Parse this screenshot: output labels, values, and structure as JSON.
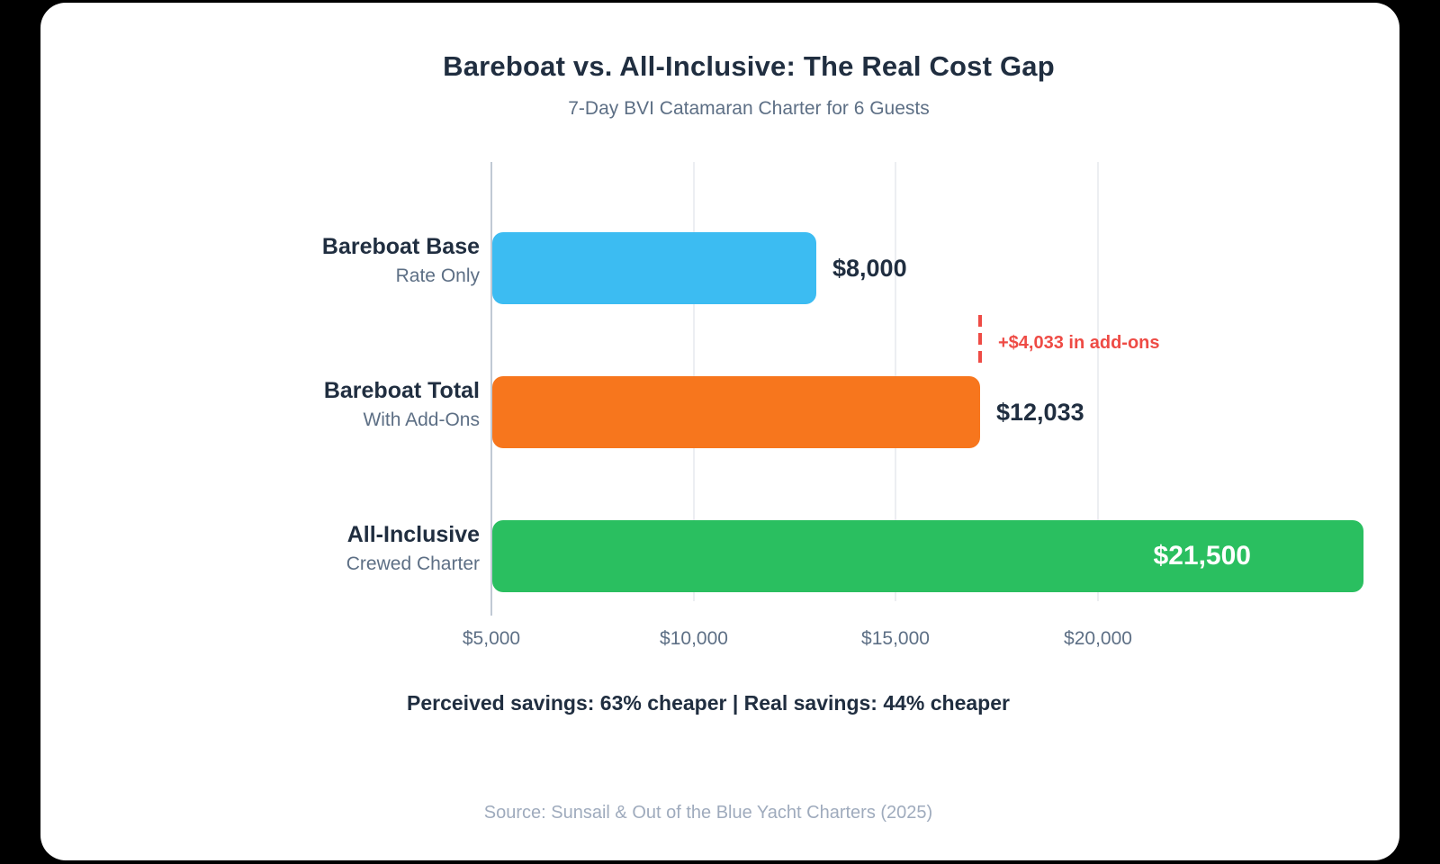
{
  "page": {
    "background_color": "#000000",
    "card_color": "#ffffff"
  },
  "chart_data": {
    "type": "bar",
    "orientation": "horizontal",
    "title": "Bareboat vs. All-Inclusive: The Real Cost Gap",
    "subtitle": "7-Day BVI Catamaran Charter for 6 Guests",
    "x_axis": {
      "tick_labels": [
        "$5,000",
        "$10,000",
        "$15,000",
        "$20,000"
      ],
      "grid": true,
      "tick_label_color": "#5d6f85"
    },
    "bars": [
      {
        "label": "Bareboat Base",
        "sublabel": "Rate Only",
        "value": 8000,
        "value_label": "$8,000",
        "color": "#3cbcf2",
        "label_placement": "outside"
      },
      {
        "label": "Bareboat Total",
        "sublabel": "With Add-Ons",
        "value": 12033,
        "value_label": "$12,033",
        "color": "#f7761d",
        "label_placement": "outside"
      },
      {
        "label": "All-Inclusive",
        "sublabel": "Crewed Charter",
        "value": 21500,
        "value_label": "$21,500",
        "color": "#2abf60",
        "label_placement": "inside"
      }
    ],
    "annotation": {
      "text": "+$4,033 in add-ons",
      "color": "#ee4b45",
      "at_value": 12033
    },
    "footnote": "Perceived savings: 63% cheaper | Real savings: 44% cheaper",
    "source": "Source: Sunsail & Out of the Blue Yacht Charters (2025)",
    "text_colors": {
      "title": "#202e40",
      "subtitle": "#5d6f85",
      "value_label": "#202e40",
      "value_label_inside": "#ffffff",
      "source": "#9fabbd"
    }
  }
}
